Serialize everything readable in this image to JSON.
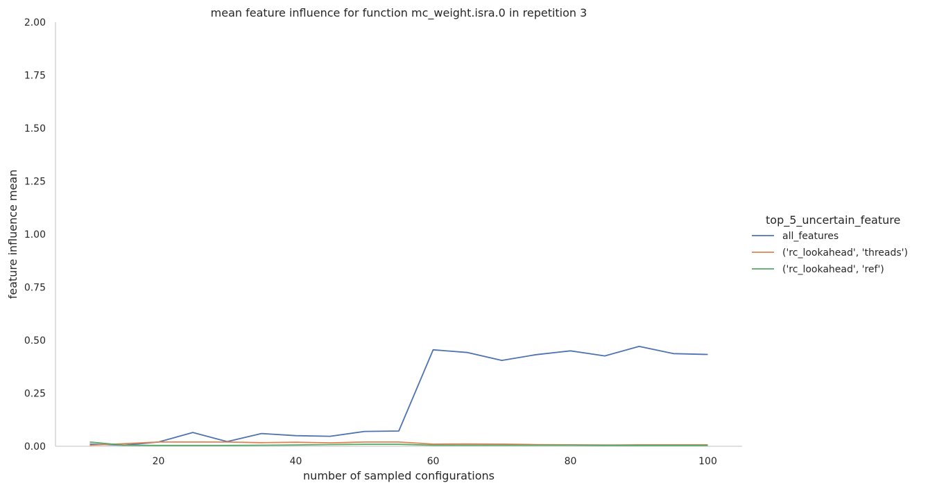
{
  "chart_data": {
    "type": "line",
    "title": "mean feature influence for function mc_weight.isra.0 in repetition 3",
    "xlabel": "number of sampled configurations",
    "ylabel": "feature influence mean",
    "xlim": [
      5,
      105
    ],
    "ylim": [
      0,
      2
    ],
    "x_ticks": [
      20,
      40,
      60,
      80,
      100
    ],
    "y_ticks": [
      "0.00",
      "0.25",
      "0.50",
      "0.75",
      "1.00",
      "1.25",
      "1.50",
      "1.75",
      "2.00"
    ],
    "grid": false,
    "legend": {
      "title": "top_5_uncertain_feature",
      "placement": "right"
    },
    "x": [
      10,
      15,
      20,
      25,
      30,
      35,
      40,
      45,
      50,
      55,
      60,
      65,
      70,
      75,
      80,
      85,
      90,
      95,
      100
    ],
    "series": [
      {
        "name": "all_features",
        "color": "#4c72b0",
        "values": [
          0.01,
          0.005,
          0.02,
          0.065,
          0.022,
          0.06,
          0.05,
          0.047,
          0.07,
          0.072,
          0.455,
          0.442,
          0.405,
          0.432,
          0.45,
          0.426,
          0.471,
          0.437,
          0.433
        ]
      },
      {
        "name": "('rc_lookahead', 'threads')",
        "color": "#dd8452",
        "values": [
          0.005,
          0.012,
          0.02,
          0.02,
          0.02,
          0.017,
          0.019,
          0.016,
          0.02,
          0.02,
          0.01,
          0.011,
          0.01,
          0.008,
          0.007,
          0.006,
          0.007,
          0.007,
          0.007
        ]
      },
      {
        "name": "('rc_lookahead', 'ref')",
        "color": "#55a868",
        "values": [
          0.02,
          0.005,
          0.004,
          0.004,
          0.004,
          0.005,
          0.006,
          0.008,
          0.009,
          0.009,
          0.005,
          0.005,
          0.005,
          0.005,
          0.005,
          0.004,
          0.004,
          0.004,
          0.004
        ]
      }
    ]
  }
}
